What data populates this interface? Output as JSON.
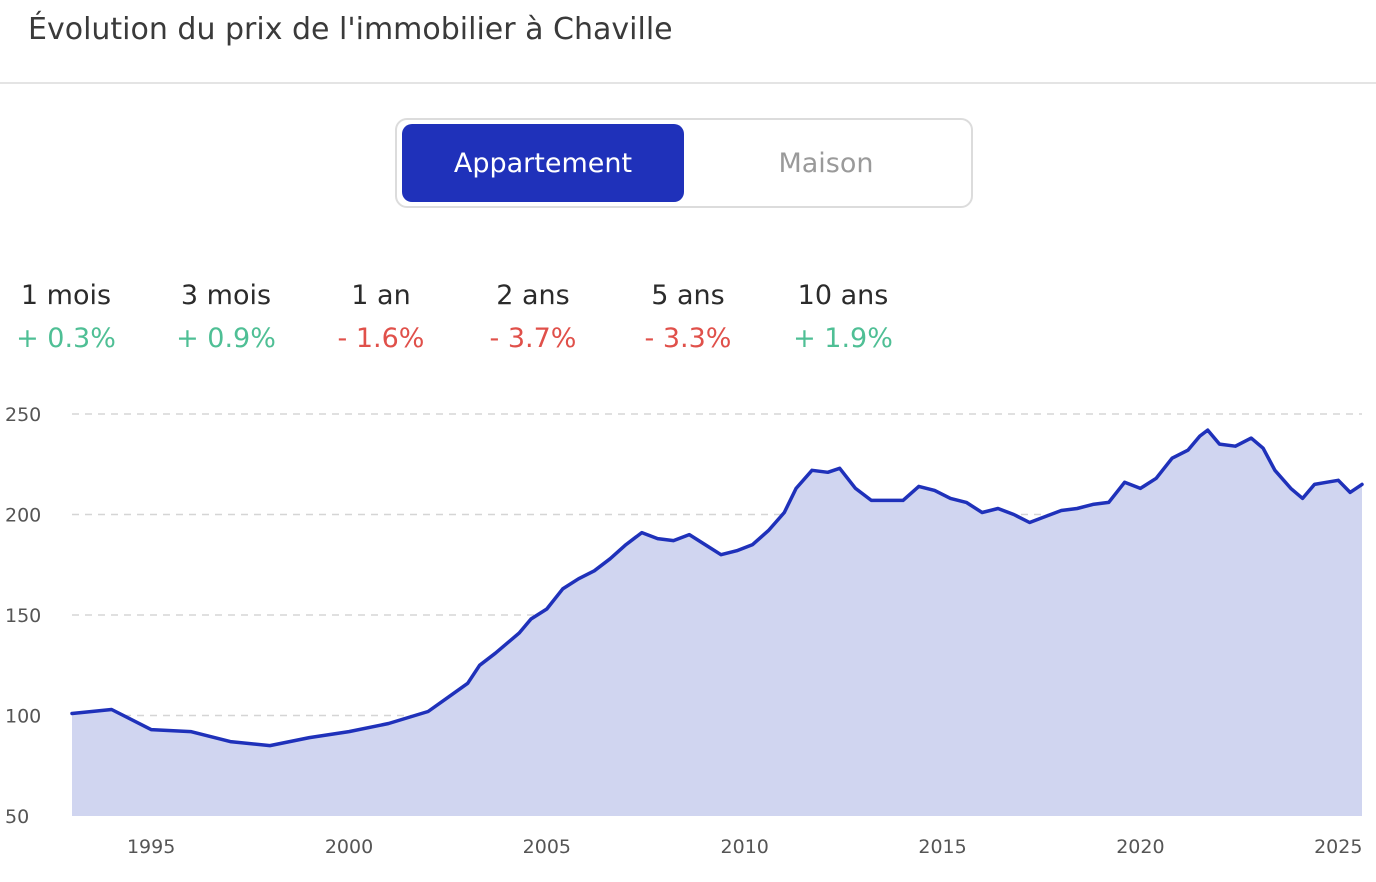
{
  "title": "Évolution du prix de l'immobilier à Chaville",
  "tabs": [
    {
      "label": "Appartement",
      "active": true
    },
    {
      "label": "Maison",
      "active": false
    }
  ],
  "stats": [
    {
      "label": "1 mois",
      "value": "+ 0.3%",
      "trend": "up"
    },
    {
      "label": "3 mois",
      "value": "+ 0.9%",
      "trend": "up"
    },
    {
      "label": "1 an",
      "value": "- 1.6%",
      "trend": "down"
    },
    {
      "label": "2 ans",
      "value": "- 3.7%",
      "trend": "down"
    },
    {
      "label": "5 ans",
      "value": "- 3.3%",
      "trend": "down"
    },
    {
      "label": "10 ans",
      "value": "+ 1.9%",
      "trend": "up"
    }
  ],
  "colors": {
    "accent": "#1f31ba",
    "area_fill": "#d0d5f0",
    "positive": "#4fbf95",
    "negative": "#e0504a",
    "grid": "#d5d5d5"
  },
  "chart_data": {
    "type": "area",
    "xlim": [
      1993,
      2025.6
    ],
    "ylim": [
      50,
      250
    ],
    "x_ticks": [
      "1995",
      "2000",
      "2005",
      "2010",
      "2015",
      "2020",
      "2025"
    ],
    "y_ticks": [
      "250",
      "200",
      "150",
      "100",
      "50"
    ],
    "grid": "horizontal dashed",
    "legend": "none",
    "points": [
      [
        1993.0,
        101
      ],
      [
        1994.0,
        103
      ],
      [
        1995.0,
        93
      ],
      [
        1996.0,
        92
      ],
      [
        1997.0,
        87
      ],
      [
        1998.0,
        85
      ],
      [
        1999.0,
        89
      ],
      [
        2000.0,
        92
      ],
      [
        2001.0,
        96
      ],
      [
        2002.0,
        102
      ],
      [
        2002.5,
        109
      ],
      [
        2003.0,
        116
      ],
      [
        2003.3,
        125
      ],
      [
        2003.7,
        131
      ],
      [
        2004.0,
        136
      ],
      [
        2004.3,
        141
      ],
      [
        2004.6,
        148
      ],
      [
        2005.0,
        153
      ],
      [
        2005.4,
        163
      ],
      [
        2005.8,
        168
      ],
      [
        2006.2,
        172
      ],
      [
        2006.6,
        178
      ],
      [
        2007.0,
        185
      ],
      [
        2007.4,
        191
      ],
      [
        2007.8,
        188
      ],
      [
        2008.2,
        187
      ],
      [
        2008.6,
        190
      ],
      [
        2009.0,
        185
      ],
      [
        2009.4,
        180
      ],
      [
        2009.8,
        182
      ],
      [
        2010.2,
        185
      ],
      [
        2010.6,
        192
      ],
      [
        2011.0,
        201
      ],
      [
        2011.3,
        213
      ],
      [
        2011.7,
        222
      ],
      [
        2012.1,
        221
      ],
      [
        2012.4,
        223
      ],
      [
        2012.8,
        213
      ],
      [
        2013.2,
        207
      ],
      [
        2013.6,
        207
      ],
      [
        2014.0,
        207
      ],
      [
        2014.4,
        214
      ],
      [
        2014.8,
        212
      ],
      [
        2015.2,
        208
      ],
      [
        2015.6,
        206
      ],
      [
        2016.0,
        201
      ],
      [
        2016.4,
        203
      ],
      [
        2016.8,
        200
      ],
      [
        2017.2,
        196
      ],
      [
        2017.6,
        199
      ],
      [
        2018.0,
        202
      ],
      [
        2018.4,
        203
      ],
      [
        2018.8,
        205
      ],
      [
        2019.2,
        206
      ],
      [
        2019.6,
        216
      ],
      [
        2020.0,
        213
      ],
      [
        2020.4,
        218
      ],
      [
        2020.8,
        228
      ],
      [
        2021.2,
        232
      ],
      [
        2021.5,
        239
      ],
      [
        2021.7,
        242
      ],
      [
        2022.0,
        235
      ],
      [
        2022.4,
        234
      ],
      [
        2022.8,
        238
      ],
      [
        2023.1,
        233
      ],
      [
        2023.4,
        222
      ],
      [
        2023.8,
        213
      ],
      [
        2024.1,
        208
      ],
      [
        2024.4,
        215
      ],
      [
        2024.7,
        216
      ],
      [
        2025.0,
        217
      ],
      [
        2025.3,
        211
      ],
      [
        2025.6,
        215
      ]
    ]
  }
}
